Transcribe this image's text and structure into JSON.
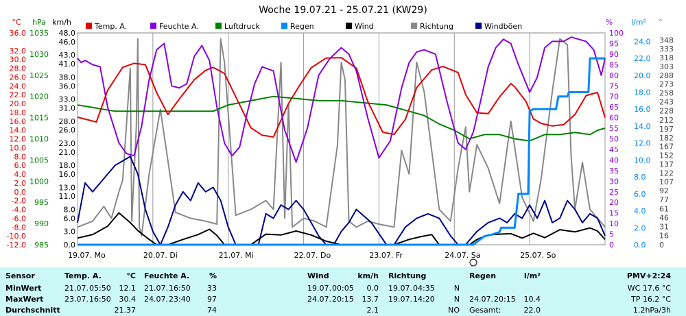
{
  "title": "Woche 19.07.21 - 25.07.21 (KW29)",
  "colors": {
    "temp": "#e00000",
    "hum": "#8800dd",
    "press": "#008000",
    "rain": "#0088ff",
    "wind": "#000000",
    "dir": "#888888",
    "gust": "#000088"
  },
  "legend": [
    {
      "key": "temp",
      "label": "Temp. A."
    },
    {
      "key": "hum",
      "label": "Feuchte A."
    },
    {
      "key": "press",
      "label": "Luftdruck"
    },
    {
      "key": "rain",
      "label": "Regen"
    },
    {
      "key": "wind",
      "label": "Wind"
    },
    {
      "key": "dir",
      "label": "Richtung"
    },
    {
      "key": "gust",
      "label": "Windböen"
    }
  ],
  "axis_units": {
    "temp": "°C",
    "press": "hPa",
    "wind": "km/h",
    "hum": "%",
    "rain": "l/m²",
    "dir": "°"
  },
  "chart_data": {
    "type": "line",
    "title": "Woche 19.07.21 - 25.07.21 (KW29)",
    "x_unit": "days since 19.07. 00:00",
    "xlim": [
      0,
      7
    ],
    "x_tick_labels": [
      "19.07. Mo",
      "20.07. Di",
      "21.07. Mi",
      "22.07. Do",
      "23.07. Fr",
      "24.07. Sa",
      "25.07. So"
    ],
    "y_axes": {
      "temp": {
        "unit": "°C",
        "range": [
          -12,
          36
        ],
        "ticks": [
          "36.0",
          "32.0",
          "28.0",
          "24.0",
          "20.0",
          "16.0",
          "12.0",
          "8.0",
          "4.0",
          "0.0",
          "-4.0",
          "-8.0",
          "-12.0"
        ],
        "extra_ticks": [
          "30.0",
          "26.0",
          "22.0",
          "18.0",
          "14.0",
          "10.0",
          "6.0",
          "2.0",
          "-2.0",
          "-6.0",
          "-10.0"
        ]
      },
      "press": {
        "unit": "hPa",
        "range": [
          985,
          1035
        ],
        "ticks": [
          "1035",
          "1030",
          "1025",
          "1020",
          "1015",
          "1010",
          "1005",
          "1000",
          "995",
          "990",
          "985"
        ]
      },
      "wind": {
        "unit": "km/h",
        "range": [
          0,
          48
        ],
        "ticks": [
          "48.0",
          "46.0",
          "43.0",
          "41.0",
          "38.0",
          "36.0",
          "33.0",
          "31.0",
          "28.0",
          "26.0",
          "23.0",
          "21.0",
          "18.0",
          "16.0",
          "13.0",
          "11.0",
          "8.0",
          "6.0",
          "3.0",
          "0.0"
        ]
      },
      "hum": {
        "unit": "%",
        "range": [
          0,
          100
        ],
        "ticks": [
          "100",
          "95",
          "90",
          "85",
          "80",
          "75",
          "70",
          "65",
          "60",
          "55",
          "50",
          "45",
          "40",
          "35",
          "30",
          "25",
          "20",
          "15",
          "10",
          "5",
          "0"
        ]
      },
      "rain": {
        "unit": "l/m²",
        "range": [
          0,
          25
        ],
        "ticks": [
          "24.0",
          "22.0",
          "20.0",
          "18.0",
          "16.0",
          "14.0",
          "12.0",
          "10.0",
          "8.0",
          "6.0",
          "4.0",
          "2.0",
          "0.0"
        ]
      },
      "dir": {
        "unit": "°",
        "range": [
          0,
          360
        ],
        "ticks": [
          "348",
          "333",
          "318",
          "303",
          "288",
          "273",
          "258",
          "243",
          "228",
          "212",
          "197",
          "182",
          "167",
          "152",
          "137",
          "122",
          "107",
          "92",
          "77",
          "61",
          "46",
          "31",
          "16",
          "0"
        ]
      }
    },
    "series": [
      {
        "key": "temp",
        "name": "Temp. A.",
        "axis": "temp",
        "x": [
          0,
          0.25,
          0.4,
          0.6,
          0.75,
          0.9,
          1.05,
          1.2,
          1.35,
          1.55,
          1.7,
          1.8,
          1.95,
          2.1,
          2.3,
          2.45,
          2.6,
          2.8,
          2.95,
          3.1,
          3.3,
          3.5,
          3.7,
          3.85,
          4.05,
          4.2,
          4.35,
          4.5,
          4.7,
          4.85,
          5.05,
          5.15,
          5.3,
          5.45,
          5.6,
          5.75,
          5.8,
          5.95,
          6.05,
          6.15,
          6.3,
          6.45,
          6.6,
          6.75,
          6.9,
          7
        ],
        "y": [
          16.9,
          15.8,
          23,
          28.2,
          29.1,
          28.8,
          22.5,
          17.5,
          21,
          25.4,
          27.5,
          28.2,
          26.8,
          21.5,
          14.5,
          12.8,
          12.4,
          20,
          24.2,
          28.1,
          30.3,
          30.4,
          28,
          20.5,
          13.5,
          13,
          16.4,
          23.6,
          27.6,
          28.4,
          27,
          22,
          17.9,
          17.7,
          21.5,
          24.5,
          23.8,
          20.5,
          16.5,
          15.5,
          14.9,
          15.2,
          17.5,
          21.8,
          22.5,
          16.8
        ]
      },
      {
        "key": "hum",
        "name": "Feuchte A.",
        "axis": "hum",
        "x": [
          0,
          0.05,
          0.1,
          0.2,
          0.3,
          0.4,
          0.55,
          0.65,
          0.75,
          0.85,
          0.95,
          1.05,
          1.15,
          1.25,
          1.35,
          1.45,
          1.55,
          1.65,
          1.75,
          1.85,
          1.95,
          2.05,
          2.15,
          2.25,
          2.35,
          2.45,
          2.6,
          2.75,
          2.9,
          3.05,
          3.2,
          3.35,
          3.5,
          3.6,
          3.7,
          3.85,
          4,
          4.15,
          4.3,
          4.4,
          4.5,
          4.6,
          4.75,
          4.9,
          5.05,
          5.15,
          5.25,
          5.35,
          5.45,
          5.55,
          5.65,
          5.75,
          5.85,
          6,
          6.1,
          6.2,
          6.3,
          6.45,
          6.55,
          6.65,
          6.75,
          6.85,
          6.95,
          7
        ],
        "y": [
          88,
          86,
          87,
          85,
          84,
          65,
          48,
          43,
          42,
          56,
          78,
          92,
          95,
          75,
          74,
          76,
          89,
          94,
          87,
          65,
          48,
          42,
          46,
          62,
          76,
          84,
          82,
          54,
          39,
          55,
          80,
          88,
          93,
          90,
          82,
          60,
          41,
          49,
          74,
          86,
          91,
          92,
          90,
          68,
          48,
          45,
          53,
          68,
          84,
          93,
          97,
          95,
          85,
          72,
          79,
          93,
          96,
          96,
          98,
          97,
          96,
          92,
          80,
          88
        ]
      },
      {
        "key": "press",
        "name": "Luftdruck",
        "axis": "press",
        "x": [
          0,
          0.5,
          1,
          1.5,
          1.8,
          2,
          2.3,
          2.6,
          2.9,
          3.2,
          3.5,
          3.8,
          4.1,
          4.4,
          4.6,
          4.8,
          5,
          5.2,
          5.4,
          5.6,
          5.8,
          6,
          6.2,
          6.4,
          6.6,
          6.8,
          6.9,
          7
        ],
        "y": [
          1018,
          1016.5,
          1016.5,
          1016.5,
          1016.5,
          1018,
          1019,
          1020,
          1019.5,
          1019,
          1019,
          1018.5,
          1018,
          1016.5,
          1015.5,
          1013.5,
          1012,
          1010,
          1011,
          1011,
          1010,
          1009.5,
          1011,
          1011,
          1011.5,
          1011,
          1012,
          1012.5
        ]
      },
      {
        "key": "rain",
        "name": "Regen",
        "axis": "rain",
        "x": [
          0,
          5.25,
          5.4,
          5.5,
          5.6,
          5.62,
          5.8,
          5.85,
          5.98,
          6,
          6.05,
          6.35,
          6.38,
          6.5,
          6.52,
          6.78,
          6.8,
          7
        ],
        "y": [
          0,
          0,
          1,
          1.2,
          1.5,
          2,
          2,
          6,
          6,
          15.8,
          16,
          16,
          17.5,
          17.5,
          18,
          18,
          22,
          22
        ]
      },
      {
        "key": "wind",
        "name": "Wind",
        "axis": "wind",
        "x": [
          0,
          0.2,
          0.4,
          0.55,
          0.7,
          0.8,
          0.95,
          1.05,
          1.2,
          1.4,
          1.6,
          1.75,
          1.85,
          1.95,
          2.1,
          2.3,
          2.5,
          2.7,
          2.9,
          3.1,
          3.3,
          3.5,
          3.7,
          3.9,
          4.05,
          4.2,
          4.4,
          4.55,
          4.7,
          4.8,
          5,
          5.2,
          5.3,
          5.45,
          5.6,
          5.75,
          5.9,
          6.05,
          6.2,
          6.4,
          6.6,
          6.8,
          6.9,
          7
        ],
        "y": [
          1.5,
          2.3,
          4.2,
          7.2,
          5,
          3.2,
          1.2,
          0,
          0,
          1.2,
          2.3,
          3.5,
          2.1,
          0,
          0,
          0,
          2.4,
          2.2,
          3.1,
          2.2,
          0.8,
          0,
          0,
          0,
          0,
          0,
          1.2,
          1.8,
          2.3,
          0,
          0,
          0,
          1.2,
          2.2,
          2.4,
          2.5,
          1.5,
          2.6,
          1.6,
          3.4,
          2.9,
          3.8,
          3.1,
          1.2
        ]
      },
      {
        "key": "dir",
        "name": "Richtung",
        "axis": "dir",
        "x": [
          0,
          0.2,
          0.35,
          0.45,
          0.55,
          0.6,
          0.7,
          0.72,
          0.78,
          0.8,
          0.82,
          0.85,
          0.95,
          1.1,
          1.3,
          1.5,
          1.7,
          1.85,
          1.9,
          1.95,
          2.1,
          2.3,
          2.5,
          2.6,
          2.7,
          2.75,
          2.8,
          2.85,
          3,
          3.15,
          3.3,
          3.45,
          3.5,
          3.55,
          3.6,
          3.7,
          3.85,
          4,
          4.2,
          4.3,
          4.4,
          4.5,
          4.6,
          4.8,
          4.95,
          5.05,
          5.15,
          5.2,
          5.3,
          5.45,
          5.6,
          5.75,
          5.9,
          6.05,
          6.15,
          6.3,
          6.4,
          6.5,
          6.55,
          6.6,
          6.7,
          6.8,
          6.9,
          7
        ],
        "y": [
          30,
          40,
          65,
          45,
          90,
          110,
          300,
          40,
          200,
          350,
          30,
          15,
          120,
          230,
          55,
          45,
          40,
          35,
          350,
          310,
          50,
          60,
          75,
          60,
          310,
          45,
          240,
          30,
          45,
          40,
          30,
          170,
          310,
          280,
          40,
          30,
          40,
          35,
          30,
          160,
          120,
          310,
          260,
          60,
          40,
          130,
          200,
          90,
          170,
          130,
          70,
          210,
          80,
          40,
          110,
          260,
          350,
          340,
          150,
          60,
          140,
          60,
          45,
          30
        ]
      },
      {
        "key": "gust",
        "name": "Windböen",
        "axis": "wind",
        "x": [
          0,
          0.1,
          0.2,
          0.3,
          0.4,
          0.5,
          0.6,
          0.7,
          0.8,
          0.9,
          1,
          1.1,
          1.2,
          1.3,
          1.4,
          1.5,
          1.6,
          1.7,
          1.8,
          1.9,
          2,
          2.1,
          2.3,
          2.4,
          2.5,
          2.6,
          2.7,
          2.8,
          2.9,
          3,
          3.1,
          3.2,
          3.3,
          3.4,
          3.5,
          3.6,
          3.7,
          3.9,
          4.1,
          4.2,
          4.35,
          4.5,
          4.65,
          4.8,
          4.95,
          5.05,
          5.15,
          5.3,
          5.45,
          5.6,
          5.7,
          5.8,
          5.9,
          6,
          6.1,
          6.2,
          6.3,
          6.4,
          6.5,
          6.6,
          6.7,
          6.8,
          6.9,
          7
        ],
        "y": [
          5,
          14,
          12,
          14,
          16,
          18,
          19,
          20,
          16,
          8,
          3,
          0,
          4,
          9,
          12,
          10,
          14,
          12,
          13,
          10,
          4,
          0,
          0,
          0,
          7,
          6,
          9,
          8,
          10,
          8,
          5,
          2,
          0,
          0,
          3,
          5,
          8,
          5,
          0,
          0,
          4,
          6,
          7,
          6,
          2,
          0,
          0,
          3,
          5,
          6,
          5,
          7,
          6,
          9,
          6,
          10,
          5,
          6,
          10,
          8,
          5,
          7,
          6,
          2
        ]
      }
    ]
  },
  "stats": {
    "header": {
      "sensor": "Sensor",
      "temp": "Temp. A.",
      "temp_unit": "°C",
      "hum": "Feuchte A.",
      "hum_unit": "%",
      "wind": "Wind",
      "wind_unit": "km/h",
      "dir": "Richtung",
      "rain": "Regen",
      "rain_unit": "l/m²",
      "pmv": "PMV+2:24"
    },
    "rows": [
      {
        "label": "MinWert",
        "temp_date": "21.07.",
        "temp_time": "05:50",
        "temp_val": "12.1",
        "hum_date": "21.07.",
        "hum_time": "16:50",
        "hum_val": "33",
        "wind_date": "19.07.",
        "wind_time": "00:05",
        "wind_val": "0.0",
        "dir_date": "19.07.",
        "dir_time": "04:35",
        "dir_val": "N",
        "rain_date": "",
        "rain_time": "",
        "rain_val": "",
        "right": "WC 17.6 °C"
      },
      {
        "label": "MaxWert",
        "temp_date": "23.07.",
        "temp_time": "16:50",
        "temp_val": "30.4",
        "hum_date": "24.07.",
        "hum_time": "23:40",
        "hum_val": "97",
        "wind_date": "24.07.",
        "wind_time": "20:15",
        "wind_val": "13.7",
        "dir_date": "19.07.",
        "dir_time": "14:20",
        "dir_val": "N",
        "rain_date": "24.07.",
        "rain_time": "20:15",
        "rain_val": "10.4",
        "right": "TP 16.2 °C"
      },
      {
        "label": "Durchschnitt",
        "temp_date": "",
        "temp_time": "",
        "temp_val": "21.37",
        "hum_date": "",
        "hum_time": "",
        "hum_val": "74",
        "wind_date": "",
        "wind_time": "",
        "wind_val": "2.1",
        "dir_date": "",
        "dir_time": "",
        "dir_val": "NO",
        "rain_date": "Gesamt:",
        "rain_time": "",
        "rain_val": "22.0",
        "right": "1.2hPa/3h"
      }
    ]
  }
}
